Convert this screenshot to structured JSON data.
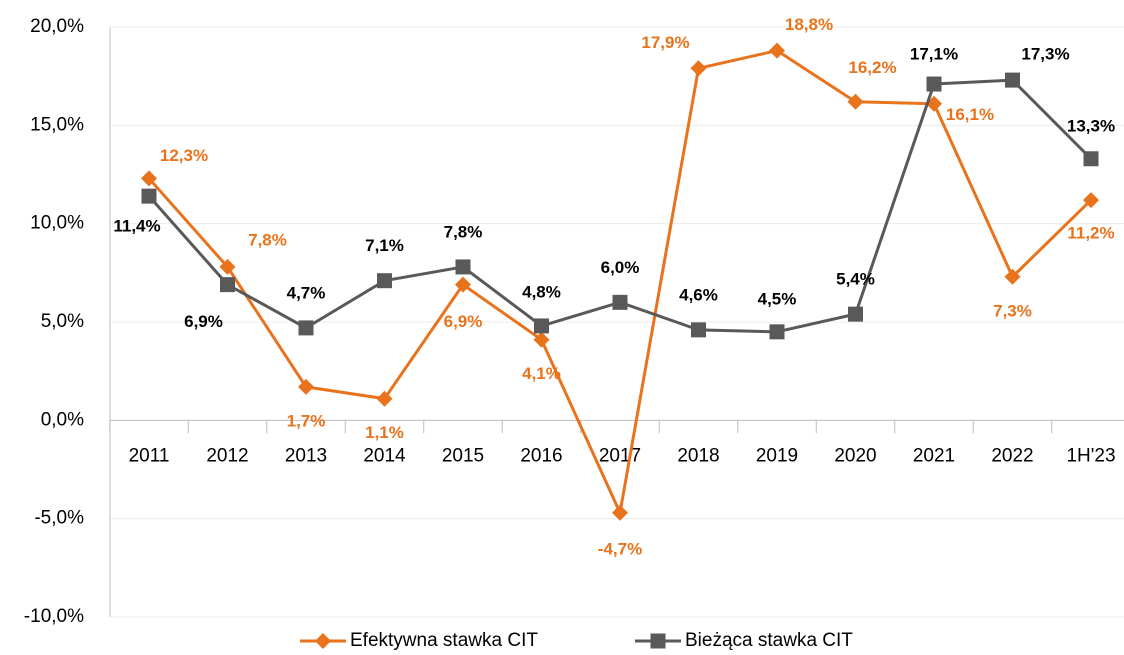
{
  "chart_data": {
    "type": "line",
    "categories": [
      "2011",
      "2012",
      "2013",
      "2014",
      "2015",
      "2016",
      "2017",
      "2018",
      "2019",
      "2020",
      "2021",
      "2022",
      "1H'23"
    ],
    "series": [
      {
        "name": "Efektywna stawka CIT",
        "color": "#e8731c",
        "marker": "diamond",
        "values": [
          12.3,
          7.8,
          1.7,
          1.1,
          6.9,
          4.1,
          -4.7,
          17.9,
          18.8,
          16.2,
          16.1,
          7.3,
          11.2
        ],
        "value_labels": [
          "12,3%",
          "7,8%",
          "1,7%",
          "1,1%",
          "6,9%",
          "4,1%",
          "-4,7%",
          "17,9%",
          "18,8%",
          "16,2%",
          "16,1%",
          "7,3%",
          "11,2%"
        ]
      },
      {
        "name": "Bieżąca stawka CIT",
        "color": "#595959",
        "marker": "square",
        "values": [
          11.4,
          6.9,
          4.7,
          7.1,
          7.8,
          4.8,
          6.0,
          4.6,
          4.5,
          5.4,
          17.1,
          17.3,
          13.3
        ],
        "value_labels": [
          "11,4%",
          "6,9%",
          "4,7%",
          "7,1%",
          "7,8%",
          "4,8%",
          "6,0%",
          "4,6%",
          "4,5%",
          "5,4%",
          "17,1%",
          "17,3%",
          "13,3%"
        ]
      }
    ],
    "ylim": [
      -10,
      20
    ],
    "yticks": [
      {
        "value": -10,
        "label": "-10,0%"
      },
      {
        "value": -5,
        "label": "-5,0%"
      },
      {
        "value": 0,
        "label": "0,0%"
      },
      {
        "value": 5,
        "label": "5,0%"
      },
      {
        "value": 10,
        "label": "10,0%"
      },
      {
        "value": 15,
        "label": "15,0%"
      },
      {
        "value": 20,
        "label": "20,0%"
      }
    ],
    "grid": true,
    "legend": "bottom"
  }
}
